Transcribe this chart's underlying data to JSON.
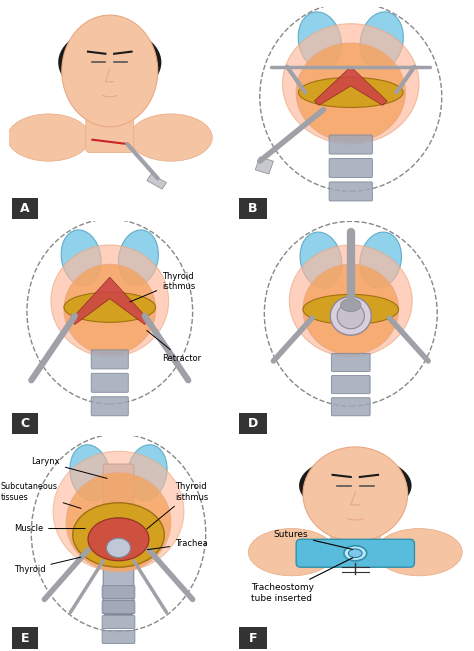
{
  "bg_color": "#ffffff",
  "panel_labels": [
    "A",
    "B",
    "C",
    "D",
    "E",
    "F"
  ],
  "label_bg": "#333333",
  "label_fg": "#ffffff",
  "panel_label_fontsize": 9,
  "annotation_fontsize": 6.0,
  "skin_color": "#F5C5A3",
  "skin_dark": "#E8A882",
  "thyroid_color": "#87CEEB",
  "thyroid_dark": "#5BA8C4",
  "muscle_color": "#F4A460",
  "tissue_color": "#FFB89A",
  "red_color": "#CC4444",
  "trachea_color": "#B0B8C8",
  "trachea_ring": "#A0A8B8",
  "gold_color": "#D4A020",
  "tool_color": "#A0A0A8",
  "hair_color": "#1a1a1a",
  "line_color": "#333333",
  "dashed_color": "#888888",
  "blue_tube": "#5ABCDC"
}
